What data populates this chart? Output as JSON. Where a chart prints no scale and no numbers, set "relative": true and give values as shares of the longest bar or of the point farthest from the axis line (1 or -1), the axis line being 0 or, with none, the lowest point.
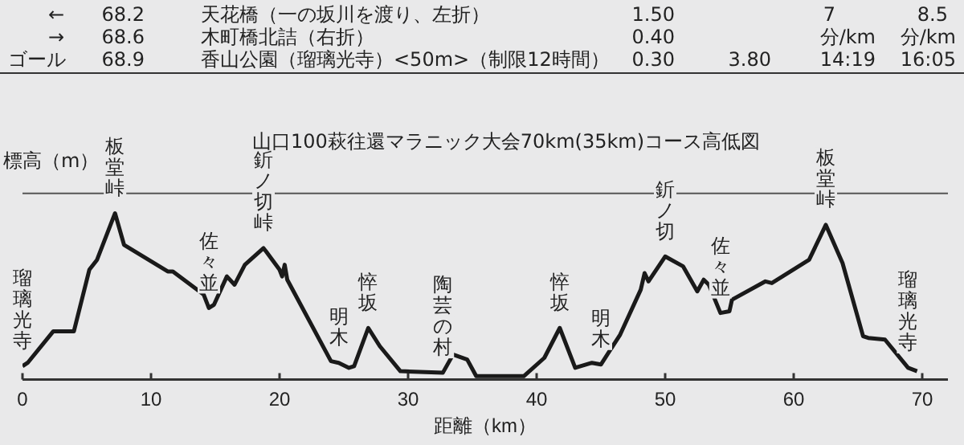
{
  "chart_data": {
    "type": "line",
    "relative": true,
    "title": "山口100萩往還マラニック大会70km(35km)コース高低図",
    "ylabel": "標高（m）",
    "xlabel": "距離（km）",
    "xlim": [
      0,
      72
    ],
    "xticks": [
      0,
      10,
      20,
      30,
      40,
      50,
      60,
      70
    ],
    "grid": false,
    "legend": false,
    "marker": "none",
    "line_style": "solid",
    "ref_lines": [
      {
        "axis": "y",
        "value": 1.12,
        "color": "#555555"
      }
    ],
    "series": [
      {
        "color": "#1a1a1a",
        "x": [
          0,
          0.4,
          2.4,
          4.0,
          5.2,
          5.8,
          7.2,
          7.9,
          11.3,
          11.7,
          14.1,
          14.5,
          14.9,
          15.9,
          16.5,
          17.3,
          18.75,
          18.95,
          20.0,
          20.2,
          20.4,
          20.6,
          24.0,
          24.6,
          25.4,
          25.8,
          26.9,
          27.8,
          29.4,
          32.7,
          33.5,
          34.6,
          35.3,
          39.0,
          40.6,
          41.8,
          43.0,
          44.3,
          45.0,
          46.5,
          48.1,
          48.4,
          48.7,
          50.0,
          51.4,
          52.5,
          53.0,
          53.4,
          54.3,
          55.0,
          55.2,
          57.8,
          58.3,
          61.2,
          62.5,
          63.8,
          65.4,
          65.8,
          67.1,
          68.9,
          69.6
        ],
        "values": [
          0.08,
          0.1,
          0.29,
          0.29,
          0.66,
          0.72,
          1,
          0.81,
          0.65,
          0.65,
          0.51,
          0.43,
          0.45,
          0.62,
          0.57,
          0.69,
          0.79,
          0.77,
          0.66,
          0.62,
          0.69,
          0.6,
          0.11,
          0.1,
          0.07,
          0.08,
          0.31,
          0.2,
          0.05,
          0.04,
          0.15,
          0.12,
          0.02,
          0.02,
          0.13,
          0.31,
          0.07,
          0.1,
          0.09,
          0.27,
          0.54,
          0.64,
          0.59,
          0.74,
          0.68,
          0.53,
          0.6,
          0.57,
          0.4,
          0.41,
          0.48,
          0.59,
          0.58,
          0.72,
          0.93,
          0.7,
          0.26,
          0.25,
          0.24,
          0.07,
          0.05
        ]
      }
    ],
    "annotations": [
      "←",
      "68.2",
      "天花橋（一の坂川を渡り、左折）",
      "1.50",
      "7",
      "8.5",
      "→",
      "68.6",
      "木町橋北詰（右折）",
      "0.40",
      "分/km",
      "分/km",
      "ゴール",
      "68.9",
      "香山公園（瑠璃光寺）<50m>（制限12時間）",
      "0.30",
      "3.80",
      "14:19",
      "16:05",
      {
        "text": "瑠璃光寺",
        "x": 0,
        "y": 0.08
      },
      {
        "text": "板堂峠",
        "x": 7.2,
        "y": 1
      },
      {
        "text": "佐々並",
        "x": 14.5,
        "y": 0.43
      },
      {
        "text": "釿ノ切峠",
        "x": 18.75,
        "y": 0.79
      },
      {
        "text": "明木",
        "x": 24.6,
        "y": 0.1
      },
      {
        "text": "悴坂",
        "x": 26.9,
        "y": 0.31
      },
      {
        "text": "陶芸の村",
        "x": 32.7,
        "y": 0.04
      },
      {
        "text": "悴坂",
        "x": 41.8,
        "y": 0.31
      },
      {
        "text": "明木",
        "x": 45.0,
        "y": 0.09
      },
      {
        "text": "釿ノ切",
        "x": 50.0,
        "y": 0.74
      },
      {
        "text": "佐々並",
        "x": 54.3,
        "y": 0.4
      },
      {
        "text": "板堂峠",
        "x": 62.5,
        "y": 0.93
      },
      {
        "text": "瑠璃光寺",
        "x": 68.9,
        "y": 0.07
      }
    ]
  }
}
